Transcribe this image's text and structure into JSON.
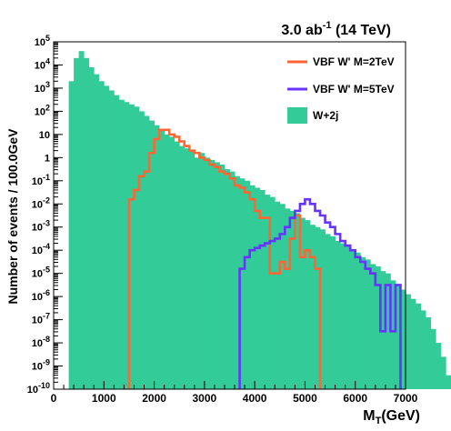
{
  "chart_data": {
    "type": "histogram",
    "title": "3.0 ab⁻¹ (14 TeV)",
    "title_parts": {
      "main": "3.0 ab",
      "sup": "-1",
      "tail": " (14 TeV)"
    },
    "xlabel": "M_T(GeV)",
    "xlabel_parts": {
      "main": "M",
      "sub": "T",
      "tail": "(GeV)"
    },
    "ylabel": "Number of events / 100.0GeV",
    "xlim": [
      0,
      7000
    ],
    "ylim": [
      1e-10,
      100000.0
    ],
    "y_log": true,
    "bin_width": 100,
    "x_ticks": [
      "0",
      "1000",
      "2000",
      "3000",
      "4000",
      "5000",
      "6000",
      "7000"
    ],
    "x_tick_values": [
      0,
      1000,
      2000,
      3000,
      4000,
      5000,
      6000,
      7000
    ],
    "y_ticks": [
      "10^-10",
      "10^-9",
      "10^-8",
      "10^-7",
      "10^-6",
      "10^-5",
      "10^-4",
      "10^-3",
      "10^-2",
      "10^-1",
      "1",
      "10",
      "10^2",
      "10^3",
      "10^4",
      "10^5"
    ],
    "y_tick_exponents": [
      -10,
      -9,
      -8,
      -7,
      -6,
      -5,
      -4,
      -3,
      -2,
      -1,
      0,
      1,
      2,
      3,
      4,
      5
    ],
    "legend": {
      "position": "top-right",
      "entries": [
        {
          "label": "VBF W' M=2TeV",
          "series": "vbf_2tev",
          "style": "line"
        },
        {
          "label": "VBF W' M=5TeV",
          "series": "vbf_5tev",
          "style": "line"
        },
        {
          "label": "W+2j",
          "series": "w2j",
          "style": "fill"
        }
      ]
    },
    "series": [
      {
        "key": "w2j",
        "name": "W+2j",
        "style": "filled",
        "color": "#33cc99",
        "x_start": 100,
        "y_log10": [
          -10,
          -10,
          3.3,
          4.3,
          4.6,
          4.3,
          3.9,
          3.6,
          3.3,
          3.1,
          2.9,
          2.7,
          2.5,
          2.4,
          2.3,
          2.2,
          2.0,
          1.8,
          1.6,
          1.4,
          1.2,
          1.0,
          0.9,
          0.7,
          0.5,
          0.4,
          0.3,
          0.0,
          0.2,
          0.0,
          -0.1,
          -0.2,
          -0.3,
          -0.5,
          -0.6,
          -0.8,
          -0.9,
          -1.0,
          -1.2,
          -1.3,
          -1.4,
          -1.6,
          -1.7,
          -1.9,
          -2.0,
          -2.2,
          -2.3,
          -2.4,
          -2.6,
          -2.7,
          -2.9,
          -3.0,
          -3.1,
          -3.3,
          -3.4,
          -3.6,
          -3.7,
          -3.8,
          -4.0,
          -4.1,
          -4.3,
          -4.4,
          -4.6,
          -4.7,
          -4.9,
          -5.0,
          -5.3,
          -5.5,
          -5.7,
          -5.9,
          -6.1,
          -6.3,
          -6.6,
          -6.9,
          -7.4,
          -8.0,
          -8.6,
          -9.4,
          -10,
          -10,
          -10
        ]
      },
      {
        "key": "vbf_2tev",
        "name": "VBF W' M=2TeV",
        "style": "step",
        "color": "#ff6633",
        "x_start": 1500,
        "y_log10": [
          -1.8,
          -1.4,
          -0.8,
          -0.6,
          0.2,
          0.8,
          1.2,
          1.2,
          1.0,
          0.9,
          0.7,
          0.5,
          0.3,
          0.2,
          0.0,
          -0.1,
          -0.3,
          -0.4,
          -0.6,
          -0.7,
          -0.9,
          -1.2,
          -1.3,
          -1.5,
          -1.8,
          -2.3,
          -2.6,
          -2.6,
          -5.0,
          -5.0,
          -4.5,
          -4.8,
          -3.5,
          -2.5,
          -4.3,
          -4.0,
          -4.3,
          -4.8
        ]
      },
      {
        "key": "vbf_5tev",
        "name": "VBF W' M=5TeV",
        "style": "step",
        "color": "#6633ff",
        "x_start": 3700,
        "y_log10": [
          -4.8,
          -4.3,
          -4.0,
          -3.9,
          -3.8,
          -3.7,
          -3.6,
          -3.5,
          -3.3,
          -3.0,
          -2.6,
          -2.3,
          -2.0,
          -1.8,
          -2.0,
          -2.3,
          -2.5,
          -2.8,
          -3.0,
          -3.3,
          -3.6,
          -3.8,
          -4.0,
          -4.3,
          -4.5,
          -4.8,
          -5.0,
          -5.5,
          -7.5,
          -5.5,
          -7.5,
          -5.5
        ]
      }
    ]
  }
}
